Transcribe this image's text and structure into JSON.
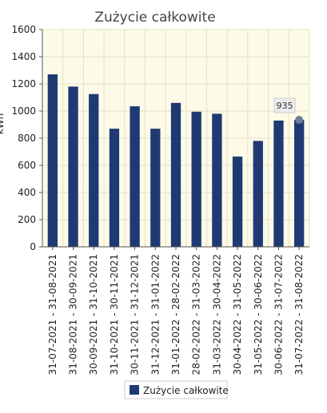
{
  "chart_data": {
    "type": "bar",
    "title": "Zużycie całkowite",
    "xlabel": "",
    "ylabel": "kWh",
    "ylim": [
      0,
      1600
    ],
    "yticks": [
      0,
      200,
      400,
      600,
      800,
      1000,
      1200,
      1400,
      1600
    ],
    "grid": true,
    "legend_position": "bottom",
    "categories": [
      "31-07-2021 - 31-08-2021",
      "31-08-2021 - 30-09-2021",
      "30-09-2021 - 31-10-2021",
      "31-10-2021 - 30-11-2021",
      "30-11-2021 - 31-12-2021",
      "31-12-2021 - 31-01-2022",
      "31-01-2022 - 28-02-2022",
      "28-02-2022 - 31-03-2022",
      "31-03-2022 - 30-04-2022",
      "30-04-2022 - 31-05-2022",
      "31-05-2022 - 30-06-2022",
      "30-06-2022 - 31-07-2022",
      "31-07-2022 - 31-08-2022"
    ],
    "series": [
      {
        "name": "Zużycie całkowite",
        "color": "#1f3a73",
        "values": [
          1270,
          1180,
          1125,
          870,
          1035,
          870,
          1060,
          995,
          980,
          665,
          780,
          930,
          935
        ]
      }
    ],
    "tooltip": {
      "index": 12,
      "label": "935"
    }
  },
  "colors": {
    "plot_background": "#fdfbe8",
    "grid": "#e3e0c8",
    "bar": "#1f3a73",
    "marker": "#6e7a99"
  }
}
